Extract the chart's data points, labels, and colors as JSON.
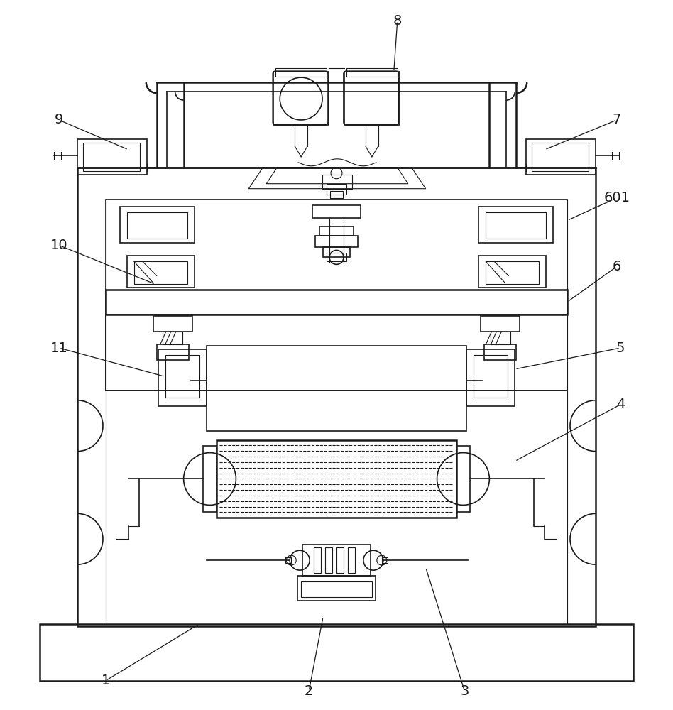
{
  "bg_color": "#ffffff",
  "line_color": "#1a1a1a",
  "lw_thin": 0.8,
  "lw_med": 1.2,
  "lw_thick": 1.8
}
